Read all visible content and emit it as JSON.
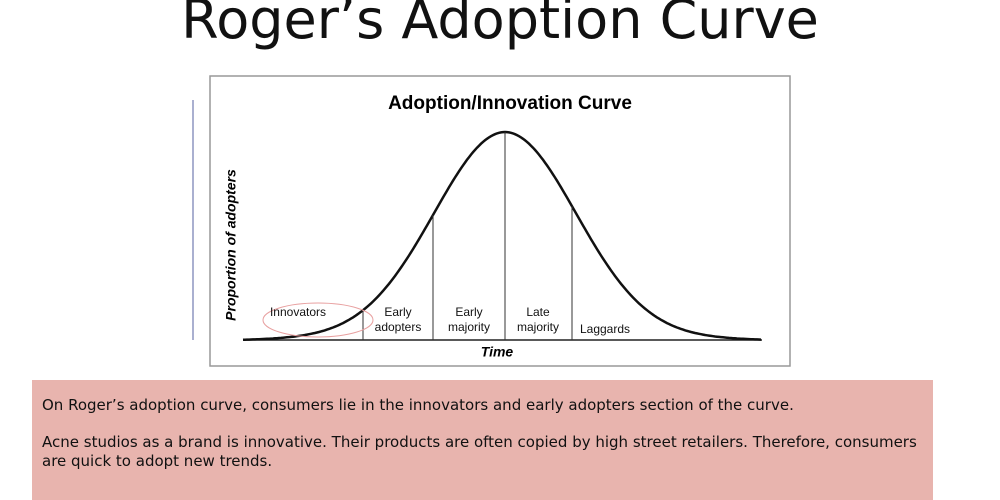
{
  "slide": {
    "title": "Roger’s Adoption Curve"
  },
  "diagram": {
    "title": "Adoption/Innovation Curve",
    "y_label": "Proportion of adopters",
    "x_label": "Time",
    "segments": [
      {
        "label": "Innovators"
      },
      {
        "label": "Early adopters"
      },
      {
        "label": "Early majority"
      },
      {
        "label": "Late majority"
      },
      {
        "label": "Laggards"
      }
    ]
  },
  "text_box": {
    "paragraphs": [
      "On Roger’s adoption curve, consumers lie in the innovators and early adopters section of the curve.",
      "Acne studios as a brand is innovative. Their products are often copied by high street retailers. Therefore, consumers are quick to adopt new trends."
    ]
  }
}
